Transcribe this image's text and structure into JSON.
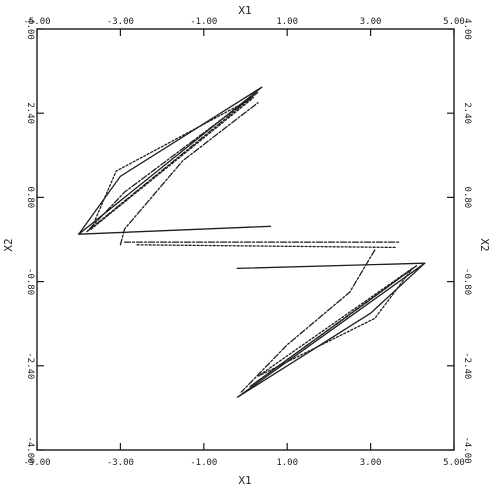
{
  "chart_data": {
    "type": "line",
    "title": "",
    "xlabel": "X1",
    "ylabel": "X2",
    "xlim": [
      -5.0,
      5.0
    ],
    "ylim": [
      -4.0,
      4.0
    ],
    "xticks": [
      -5.0,
      -3.0,
      -1.0,
      1.0,
      3.0,
      5.0
    ],
    "xtick_labels": [
      "-5.00",
      "-3.00",
      "-1.00",
      "1.00",
      "3.00",
      "5.00"
    ],
    "yticks": [
      -4.0,
      -2.4,
      -0.8,
      0.8,
      2.4,
      4.0
    ],
    "ytick_labels": [
      "-4.00",
      "-2.40",
      "-0.80",
      "0.80",
      "2.40",
      "4.00"
    ],
    "grid": false,
    "mirror_axes": true,
    "series": [
      {
        "style": "solid",
        "x": [
          -4.0,
          0.4,
          -3.0,
          -4.0
        ],
        "y": [
          0.1,
          2.9,
          1.2,
          0.1
        ]
      },
      {
        "style": "dashed",
        "x": [
          -3.8,
          0.3,
          -2.9,
          -3.8
        ],
        "y": [
          0.15,
          2.8,
          0.9,
          0.15
        ]
      },
      {
        "style": "dotted",
        "x": [
          -3.7,
          0.2,
          -3.1,
          -3.7
        ],
        "y": [
          0.2,
          2.7,
          1.3,
          0.2
        ]
      },
      {
        "style": "dashed",
        "x": [
          -3.0,
          -2.9,
          -1.5,
          0.3
        ],
        "y": [
          -0.1,
          0.2,
          1.5,
          2.6
        ]
      },
      {
        "style": "solid",
        "x": [
          -4.0,
          0.6
        ],
        "y": [
          0.1,
          0.25
        ]
      },
      {
        "style": "dashed",
        "x": [
          -2.9,
          3.7
        ],
        "y": [
          -0.05,
          -0.05
        ]
      },
      {
        "style": "dotted",
        "x": [
          -2.6,
          3.6
        ],
        "y": [
          -0.1,
          -0.15
        ]
      },
      {
        "style": "solid",
        "x": [
          -0.2,
          4.3
        ],
        "y": [
          -0.55,
          -0.45
        ]
      },
      {
        "style": "solid",
        "x": [
          4.3,
          -0.2,
          3.0,
          4.3
        ],
        "y": [
          -0.45,
          -3.0,
          -1.4,
          -0.45
        ]
      },
      {
        "style": "dashed",
        "x": [
          4.1,
          0.1,
          2.9,
          4.1
        ],
        "y": [
          -0.5,
          -2.8,
          -1.2,
          -0.5
        ]
      },
      {
        "style": "dotted",
        "x": [
          4.0,
          0.3,
          3.1,
          4.0
        ],
        "y": [
          -0.55,
          -2.6,
          -1.5,
          -0.55
        ]
      },
      {
        "style": "dashed",
        "x": [
          3.1,
          2.5,
          1.0,
          -0.1
        ],
        "y": [
          -0.2,
          -1.0,
          -2.0,
          -2.9
        ]
      }
    ]
  }
}
